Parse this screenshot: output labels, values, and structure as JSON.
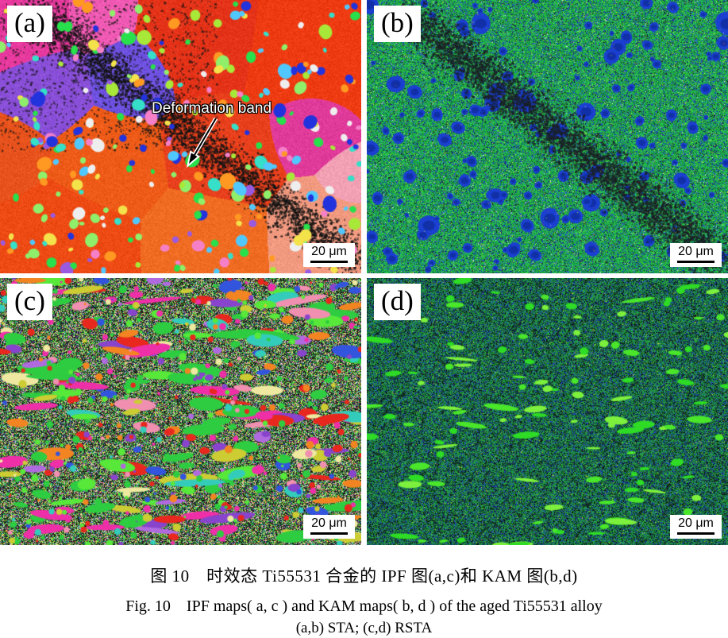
{
  "figure": {
    "panels": [
      {
        "id": "a",
        "label": "(a)",
        "map_type": "IPF map",
        "condition": "STA",
        "scale_bar": "20 μm",
        "annotation": "Deformation band"
      },
      {
        "id": "b",
        "label": "(b)",
        "map_type": "KAM map",
        "condition": "STA",
        "scale_bar": "20 μm"
      },
      {
        "id": "c",
        "label": "(c)",
        "map_type": "IPF map",
        "condition": "RSTA",
        "scale_bar": "20 μm"
      },
      {
        "id": "d",
        "label": "(d)",
        "map_type": "KAM map",
        "condition": "RSTA",
        "scale_bar": "20 μm"
      }
    ],
    "caption": {
      "zh": "图 10　时效态 Ti55531 合金的 IPF 图(a,c)和 KAM 图(b,d)",
      "en": "Fig. 10　IPF maps( a, c ) and KAM maps( b, d ) of the aged Ti55531 alloy",
      "sub": "(a,b) STA; (c,d) RSTA"
    },
    "colors": {
      "background": "#ffffff",
      "label_chip_bg": "#ffffff",
      "label_text": "#000000",
      "annotation_text": "#ffffff",
      "scale_bar_line": "#000000"
    }
  },
  "render": {
    "panel_a": {
      "regions": [
        [
          0.07,
          0.08,
          95,
          "#e83a9e"
        ],
        [
          0.28,
          0.05,
          70,
          "#f05ab4"
        ],
        [
          0.55,
          0.1,
          120,
          "#e43318"
        ],
        [
          0.86,
          0.16,
          125,
          "#ee3b12"
        ],
        [
          0.13,
          0.33,
          85,
          "#8a4fd8"
        ],
        [
          0.36,
          0.28,
          80,
          "#6f52e2"
        ],
        [
          0.03,
          0.56,
          70,
          "#e8521c"
        ],
        [
          0.3,
          0.6,
          105,
          "#ee5b18"
        ],
        [
          0.6,
          0.55,
          100,
          "#e8401c"
        ],
        [
          0.86,
          0.47,
          70,
          "#e03a9a"
        ],
        [
          0.2,
          0.88,
          115,
          "#ee4a14"
        ],
        [
          0.55,
          0.88,
          100,
          "#f06c22"
        ],
        [
          0.92,
          0.86,
          95,
          "#f29a80"
        ],
        [
          0.97,
          0.66,
          55,
          "#f2a0b4"
        ]
      ],
      "grains": [
        "#27e04c",
        "#a8e838",
        "#35dfc8",
        "#2233dd",
        "#f4e24a",
        "#ff9922",
        "#8fef6a",
        "#f580c8",
        "#9a5ae0",
        "#eeeeee",
        "#50c8ff"
      ],
      "band": [
        0.08,
        0.03,
        0.99,
        0.97
      ],
      "band_color": "#141414"
    },
    "panel_b": {
      "bg": [
        [
          "#2dbf45",
          3
        ],
        [
          "#1ea23a",
          3
        ],
        [
          "#12894f",
          2
        ],
        [
          "#27d14b",
          1.5
        ],
        [
          "#1e9e6e",
          1.5
        ],
        [
          "#2a50d0",
          1.2
        ],
        [
          "#1535b8",
          0.8
        ],
        [
          "#20262a",
          1
        ],
        [
          "#bfe24a",
          0.15
        ],
        [
          "#d8dde0",
          0.1
        ]
      ],
      "blob": [
        "#1b3fd0",
        "#1130a8"
      ],
      "band": [
        0.1,
        0.04,
        0.97,
        0.95
      ],
      "band_color": "#1a2024",
      "accents": [
        "#e8e030",
        "#e06020",
        "#cc3030",
        "#ffffff"
      ]
    },
    "panel_c": {
      "bg": [
        [
          "#161616",
          3
        ],
        [
          "#2e2e2e",
          2
        ],
        [
          "#27b03c",
          2.5
        ],
        [
          "#8fe03c",
          1
        ],
        [
          "#e6e2a0",
          0.8
        ],
        [
          "#d8d8d8",
          0.6
        ],
        [
          "#c05cc8",
          0.5
        ],
        [
          "#30b0a8",
          0.5
        ],
        [
          "#f2a0b8",
          0.5
        ],
        [
          "#f0e040",
          0.5
        ],
        [
          "#3050c8",
          0.4
        ],
        [
          "#e05050",
          0.4
        ]
      ],
      "ellipses": [
        [
          "#2ecc40",
          5
        ],
        [
          "#57e83a",
          3
        ],
        [
          "#e8281e",
          2.2
        ],
        [
          "#ee2fa8",
          2
        ],
        [
          "#f28422",
          1.5
        ],
        [
          "#8844cc",
          1.5
        ],
        [
          "#3355dd",
          1.2
        ],
        [
          "#cccc33",
          1
        ],
        [
          "#33ccbb",
          1
        ],
        [
          "#f08fb0",
          1
        ],
        [
          "#eee8a0",
          0.8
        ],
        [
          "#b06adf",
          0.8
        ]
      ]
    },
    "panel_d": {
      "bg": [
        [
          "#1f8c3c",
          3
        ],
        [
          "#27a93c",
          2
        ],
        [
          "#14512a",
          1.5
        ],
        [
          "#1f49b0",
          1.8
        ],
        [
          "#16306e",
          1
        ],
        [
          "#0e1a16",
          2.2
        ],
        [
          "#1e8a68",
          1.2
        ],
        [
          "#c8d040",
          0.1
        ]
      ],
      "streak": [
        "#4ae62a",
        "#7cf03c",
        "#2edb25"
      ],
      "network": "#101c16"
    }
  }
}
